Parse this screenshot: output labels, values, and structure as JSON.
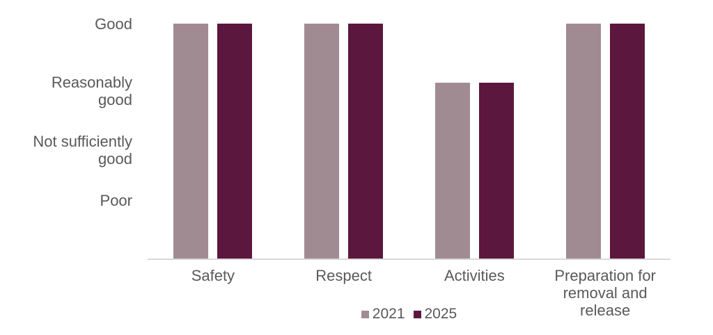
{
  "chart_data": {
    "type": "bar",
    "categories": [
      "Safety",
      "Respect",
      "Activities",
      "Preparation for removal and release"
    ],
    "series": [
      {
        "name": "2021",
        "color": "#a18b93",
        "values": [
          4,
          4,
          3,
          4
        ]
      },
      {
        "name": "2025",
        "color": "#5c173e",
        "values": [
          4,
          4,
          3,
          4
        ]
      }
    ],
    "y_ticks": [
      {
        "value": 4,
        "label": "Good"
      },
      {
        "value": 3,
        "label": "Reasonably good"
      },
      {
        "value": 2,
        "label": "Not sufficiently good"
      },
      {
        "value": 1,
        "label": "Poor"
      }
    ],
    "value_scale": {
      "4": "Good",
      "3": "Reasonably good",
      "2": "Not sufficiently good",
      "1": "Poor"
    },
    "ylim": [
      0,
      4
    ],
    "title": "",
    "xlabel": "",
    "ylabel": "",
    "grid": false,
    "legend_position": "bottom",
    "colors": {
      "series_2021": "#a18b93",
      "series_2025": "#5c173e",
      "axis_line": "#d9d9d9",
      "text": "#595959",
      "background": "#ffffff"
    }
  }
}
